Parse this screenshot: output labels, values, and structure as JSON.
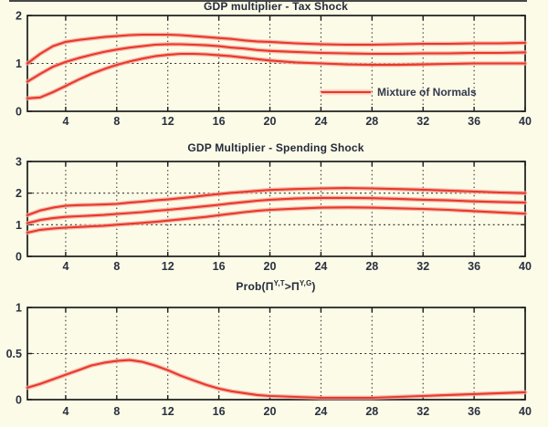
{
  "page": {
    "background_color": "#fbfbe7",
    "top_rule_color": "#474747"
  },
  "style": {
    "line_color": "#e8392b",
    "line_halo_color": "#f6a99f",
    "grid_color": "#2e2e2e",
    "axis_color": "#1b1b1b",
    "tick_text_color": "#2a3040"
  },
  "legend": {
    "label": "Mixture of Normals"
  },
  "chart_data": [
    {
      "type": "line",
      "title": "GDP multiplier - Tax Shock",
      "xlim": [
        1,
        40
      ],
      "ylim": [
        0,
        2
      ],
      "xticks": [
        4,
        8,
        12,
        16,
        20,
        24,
        28,
        32,
        36,
        40
      ],
      "yticks": [
        0,
        1,
        2
      ],
      "grid": true,
      "legend_label": "Mixture of Normals",
      "legend_position": "inside-lower-right",
      "x": [
        1,
        2,
        3,
        4,
        5,
        6,
        7,
        8,
        9,
        10,
        11,
        12,
        13,
        14,
        15,
        16,
        17,
        18,
        19,
        20,
        22,
        24,
        26,
        28,
        30,
        32,
        34,
        36,
        38,
        40
      ],
      "series": [
        {
          "name": "upper-band",
          "values": [
            1.0,
            1.2,
            1.36,
            1.45,
            1.49,
            1.52,
            1.55,
            1.57,
            1.59,
            1.6,
            1.6,
            1.6,
            1.59,
            1.57,
            1.55,
            1.53,
            1.51,
            1.48,
            1.46,
            1.45,
            1.42,
            1.4,
            1.39,
            1.39,
            1.4,
            1.41,
            1.41,
            1.42,
            1.42,
            1.43
          ]
        },
        {
          "name": "median",
          "values": [
            0.62,
            0.78,
            0.93,
            1.03,
            1.11,
            1.18,
            1.24,
            1.29,
            1.33,
            1.36,
            1.39,
            1.4,
            1.4,
            1.39,
            1.38,
            1.36,
            1.33,
            1.31,
            1.28,
            1.26,
            1.24,
            1.22,
            1.21,
            1.2,
            1.2,
            1.21,
            1.21,
            1.22,
            1.22,
            1.23
          ]
        },
        {
          "name": "lower-band",
          "values": [
            0.27,
            0.29,
            0.4,
            0.53,
            0.66,
            0.78,
            0.88,
            0.97,
            1.04,
            1.1,
            1.15,
            1.18,
            1.2,
            1.2,
            1.19,
            1.17,
            1.15,
            1.12,
            1.09,
            1.06,
            1.02,
            1.0,
            0.98,
            0.97,
            0.97,
            0.98,
            0.99,
            1.0,
            1.0,
            1.0
          ]
        }
      ]
    },
    {
      "type": "line",
      "title": "GDP Multiplier - Spending Shock",
      "xlim": [
        1,
        40
      ],
      "ylim": [
        0,
        3
      ],
      "xticks": [
        4,
        8,
        12,
        16,
        20,
        24,
        28,
        32,
        36,
        40
      ],
      "yticks": [
        0,
        1,
        2,
        3
      ],
      "grid": true,
      "x": [
        1,
        2,
        3,
        4,
        5,
        6,
        7,
        8,
        9,
        10,
        11,
        12,
        13,
        14,
        15,
        16,
        17,
        18,
        19,
        20,
        22,
        24,
        26,
        28,
        30,
        32,
        34,
        36,
        38,
        40
      ],
      "series": [
        {
          "name": "upper-band",
          "values": [
            1.3,
            1.45,
            1.54,
            1.6,
            1.62,
            1.63,
            1.64,
            1.66,
            1.7,
            1.73,
            1.77,
            1.8,
            1.84,
            1.88,
            1.93,
            1.97,
            2.01,
            2.04,
            2.07,
            2.1,
            2.13,
            2.15,
            2.16,
            2.15,
            2.13,
            2.11,
            2.08,
            2.05,
            2.02,
            2.0
          ]
        },
        {
          "name": "median",
          "values": [
            1.05,
            1.15,
            1.21,
            1.25,
            1.27,
            1.29,
            1.31,
            1.34,
            1.37,
            1.4,
            1.44,
            1.47,
            1.51,
            1.55,
            1.59,
            1.63,
            1.68,
            1.72,
            1.76,
            1.79,
            1.83,
            1.85,
            1.85,
            1.84,
            1.82,
            1.79,
            1.77,
            1.74,
            1.72,
            1.7
          ]
        },
        {
          "name": "lower-band",
          "values": [
            0.75,
            0.84,
            0.88,
            0.91,
            0.93,
            0.95,
            0.97,
            1.0,
            1.03,
            1.06,
            1.09,
            1.13,
            1.17,
            1.21,
            1.25,
            1.3,
            1.35,
            1.4,
            1.44,
            1.47,
            1.51,
            1.54,
            1.55,
            1.54,
            1.52,
            1.5,
            1.47,
            1.43,
            1.39,
            1.35
          ]
        }
      ]
    },
    {
      "type": "line",
      "title": "Prob(Π^{Y,T}>Π^{Y,G})",
      "title_parts": {
        "prefix": "Prob(",
        "pi1": "Π",
        "sup1": "Y,T",
        "gt": ">",
        "pi2": "Π",
        "sup2": "Y,G",
        "suffix": ")"
      },
      "xlim": [
        1,
        40
      ],
      "ylim": [
        0,
        1
      ],
      "xticks": [
        4,
        8,
        12,
        16,
        20,
        24,
        28,
        32,
        36,
        40
      ],
      "yticks": [
        0,
        0.5,
        1
      ],
      "grid": true,
      "x": [
        1,
        2,
        3,
        4,
        5,
        6,
        7,
        8,
        9,
        10,
        11,
        12,
        13,
        14,
        15,
        16,
        17,
        18,
        19,
        20,
        22,
        24,
        26,
        28,
        30,
        32,
        34,
        36,
        38,
        40
      ],
      "series": [
        {
          "name": "probability",
          "values": [
            0.13,
            0.17,
            0.22,
            0.27,
            0.32,
            0.37,
            0.4,
            0.42,
            0.43,
            0.41,
            0.37,
            0.32,
            0.26,
            0.21,
            0.16,
            0.12,
            0.09,
            0.07,
            0.05,
            0.04,
            0.03,
            0.02,
            0.02,
            0.02,
            0.03,
            0.04,
            0.05,
            0.06,
            0.07,
            0.08
          ]
        }
      ]
    }
  ]
}
